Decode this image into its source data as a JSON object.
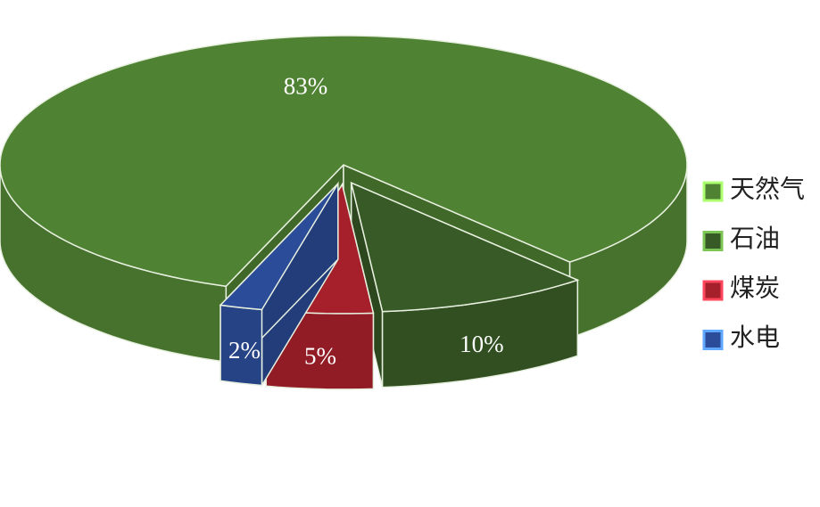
{
  "chart_data": {
    "type": "pie3d",
    "categories": [
      "天然气",
      "石油",
      "煤炭",
      "水电"
    ],
    "values": [
      83,
      10,
      5,
      2
    ],
    "value_labels": [
      "83%",
      "10%",
      "5%",
      "2%"
    ],
    "colors": [
      "#4f8233",
      "#385a26",
      "#a5202a",
      "#2b4c98"
    ],
    "legend": "right"
  }
}
